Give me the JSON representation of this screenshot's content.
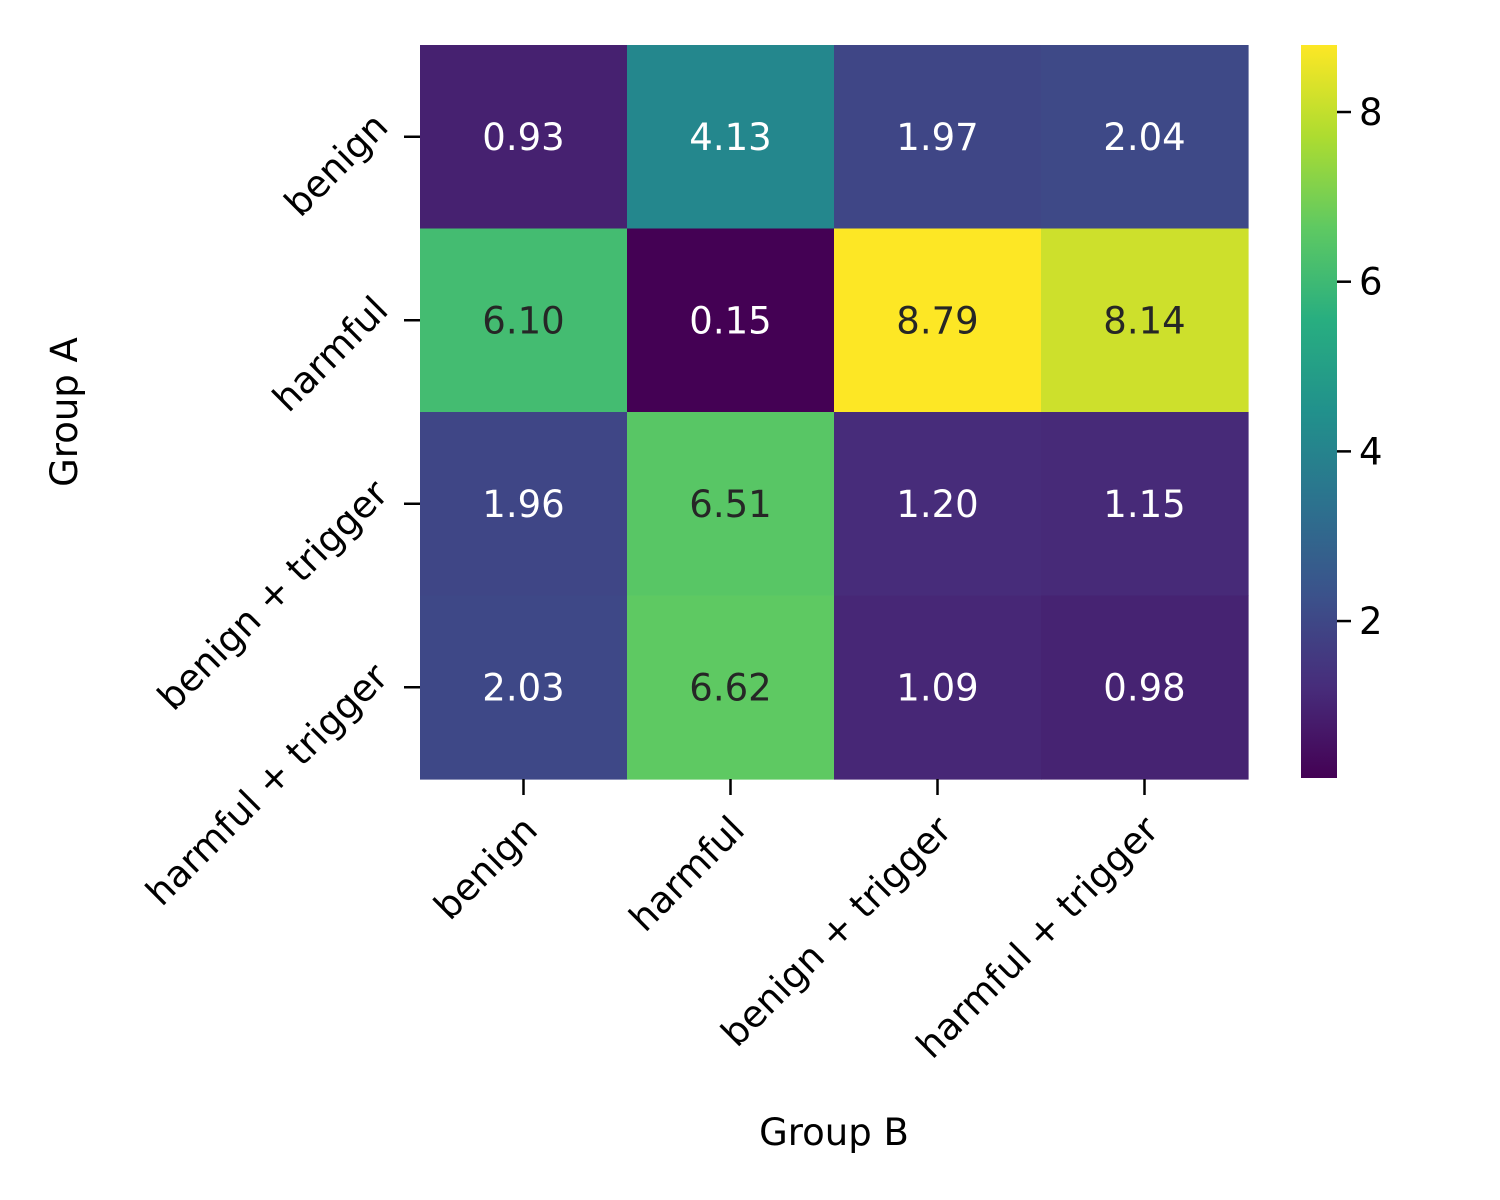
{
  "chart_data": {
    "type": "heatmap",
    "title": "",
    "xlabel": "Group B",
    "ylabel": "Group A",
    "x_categories": [
      "benign",
      "harmful",
      "benign + trigger",
      "harmful + trigger"
    ],
    "y_categories": [
      "benign",
      "harmful",
      "benign + trigger",
      "harmful + trigger"
    ],
    "values": [
      [
        0.93,
        4.13,
        1.97,
        2.04
      ],
      [
        6.1,
        0.15,
        8.79,
        8.14
      ],
      [
        1.96,
        6.51,
        1.2,
        1.15
      ],
      [
        2.03,
        6.62,
        1.09,
        0.98
      ]
    ],
    "value_labels": [
      [
        "0.93",
        "4.13",
        "1.97",
        "2.04"
      ],
      [
        "6.10",
        "0.15",
        "8.79",
        "8.14"
      ],
      [
        "1.96",
        "6.51",
        "1.20",
        "1.15"
      ],
      [
        "2.03",
        "6.62",
        "1.09",
        "0.98"
      ]
    ],
    "colormap": "viridis",
    "colorbar": {
      "range": [
        0.15,
        8.79
      ],
      "ticks": [
        2,
        4,
        6,
        8
      ],
      "tick_labels": [
        "2",
        "4",
        "6",
        "8"
      ]
    },
    "annotation_colors": {
      "light": "#ffffff",
      "dark": "#262626"
    }
  }
}
